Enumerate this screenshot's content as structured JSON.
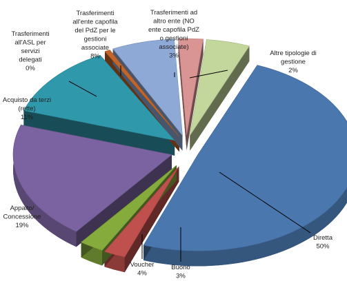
{
  "chart_data": {
    "type": "pie",
    "style": "3d-exploded",
    "legend": "none",
    "slices": [
      {
        "label": "Diretta",
        "value": 50,
        "display": "50%",
        "color": "#4a77ae"
      },
      {
        "label": "Buono",
        "value": 3,
        "display": "3%",
        "color": "#c0504d"
      },
      {
        "label": "Voucher",
        "value": 4,
        "display": "4%",
        "color": "#86ab3d"
      },
      {
        "label": "Appalto/ Concessione",
        "value": 19,
        "display": "19%",
        "color": "#7a63a0"
      },
      {
        "label": "Acquisto da terzi (rette)",
        "value": 11,
        "display": "11%",
        "color": "#2f98ab"
      },
      {
        "label": "Trasferimenti all'ASL per servizi delegati",
        "value": 0,
        "display": "0%",
        "color": "#c1652a"
      },
      {
        "label": "Trasferimenti all'ente capofila del PdZ per le gestioni associate",
        "value": 8,
        "display": "8%",
        "color": "#8fa9d6"
      },
      {
        "label": "Trasferimenti ad altro ente (NO ente capofila PdZ o gestioni associate)",
        "value": 3,
        "display": "3%",
        "color": "#d99594"
      },
      {
        "label": "Altre tipologie di gestione",
        "value": 2,
        "display": "2%",
        "color": "#c3d69b"
      }
    ]
  }
}
